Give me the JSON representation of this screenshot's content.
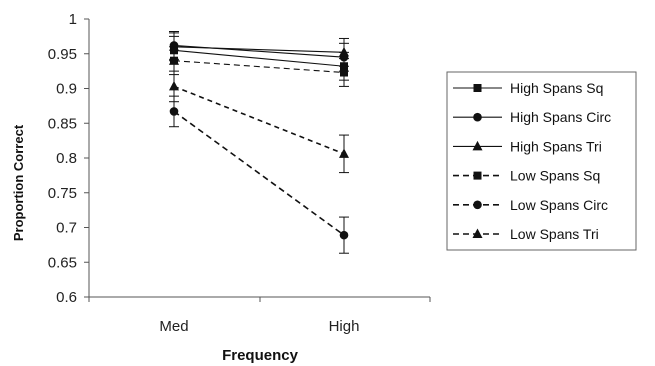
{
  "chart_data": {
    "type": "line",
    "title": "",
    "xlabel": "Frequency",
    "ylabel": "Proportion Correct",
    "categories": [
      "Med",
      "High"
    ],
    "ylim": [
      0.6,
      1.0
    ],
    "yticks": [
      "0.6",
      "0.65",
      "0.7",
      "0.75",
      "0.8",
      "0.85",
      "0.9",
      "0.95",
      "1"
    ],
    "grid": false,
    "legend_position": "right",
    "series": [
      {
        "name": "High Spans Sq",
        "values": [
          0.955,
          0.932
        ],
        "error": [
          0.02,
          0.02
        ],
        "marker": "square",
        "line": "solid",
        "color": "#111111"
      },
      {
        "name": "High Spans Circ",
        "values": [
          0.962,
          0.945
        ],
        "error": [
          0.02,
          0.02
        ],
        "marker": "circle",
        "line": "solid",
        "color": "#111111"
      },
      {
        "name": "High Spans Tri",
        "values": [
          0.96,
          0.952
        ],
        "error": [
          0.02,
          0.02
        ],
        "marker": "triangle",
        "line": "solid",
        "color": "#111111"
      },
      {
        "name": "Low Spans Sq",
        "values": [
          0.94,
          0.923
        ],
        "error": [
          0.02,
          0.02
        ],
        "marker": "square",
        "line": "dashed",
        "color": "#111111"
      },
      {
        "name": "Low Spans Circ",
        "values": [
          0.867,
          0.689
        ],
        "error": [
          0.022,
          0.026
        ],
        "marker": "circle",
        "line": "dashed",
        "color": "#111111"
      },
      {
        "name": "Low Spans Tri",
        "values": [
          0.903,
          0.806
        ],
        "error": [
          0.022,
          0.027
        ],
        "marker": "triangle",
        "line": "dashed",
        "color": "#111111"
      }
    ]
  }
}
